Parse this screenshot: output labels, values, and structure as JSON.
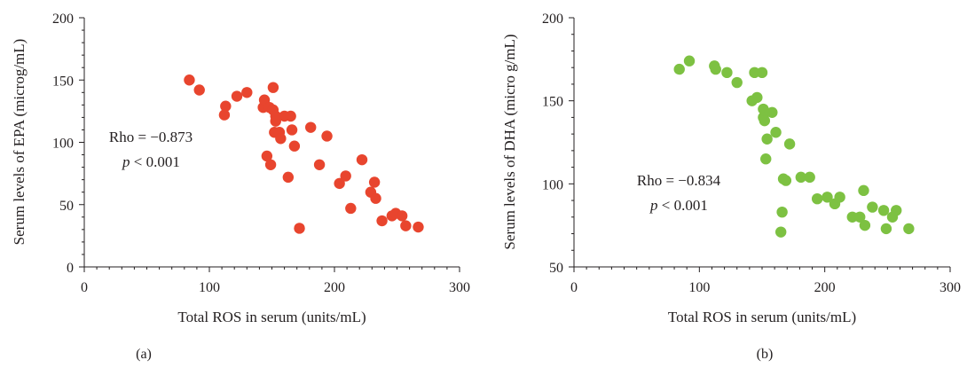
{
  "chart_data": [
    {
      "type": "scatter",
      "panel_label": "(a)",
      "xlabel": "Total ROS in serum (units/mL)",
      "ylabel": "Serum levels of EPA (microg/mL)",
      "xlim": [
        0,
        300
      ],
      "ylim": [
        0,
        200
      ],
      "xticks": [
        "0",
        "100",
        "200",
        "300"
      ],
      "yticks": [
        "0",
        "50",
        "100",
        "150",
        "200"
      ],
      "grid": false,
      "marker_color": "#e8452e",
      "annotation": {
        "rho": "Rho = −0.873",
        "p_italic": "p",
        "p_rest": " < 0.001"
      },
      "points": [
        [
          84,
          150
        ],
        [
          92,
          142
        ],
        [
          112,
          122
        ],
        [
          113,
          129
        ],
        [
          122,
          137
        ],
        [
          130,
          140
        ],
        [
          143,
          128
        ],
        [
          144,
          134
        ],
        [
          146,
          89
        ],
        [
          148,
          128
        ],
        [
          149,
          82
        ],
        [
          151,
          126
        ],
        [
          151,
          144
        ],
        [
          152,
          108
        ],
        [
          153,
          121
        ],
        [
          153,
          117
        ],
        [
          156,
          108
        ],
        [
          157,
          103
        ],
        [
          160,
          121
        ],
        [
          163,
          72
        ],
        [
          165,
          121
        ],
        [
          166,
          110
        ],
        [
          168,
          97
        ],
        [
          172,
          31
        ],
        [
          181,
          112
        ],
        [
          188,
          82
        ],
        [
          194,
          105
        ],
        [
          204,
          67
        ],
        [
          209,
          73
        ],
        [
          213,
          47
        ],
        [
          222,
          86
        ],
        [
          229,
          60
        ],
        [
          232,
          68
        ],
        [
          233,
          55
        ],
        [
          238,
          37
        ],
        [
          246,
          41
        ],
        [
          249,
          43
        ],
        [
          254,
          41
        ],
        [
          257,
          33
        ],
        [
          267,
          32
        ]
      ]
    },
    {
      "type": "scatter",
      "panel_label": "(b)",
      "xlabel": "Total ROS in serum (units/mL)",
      "ylabel": "Serum levels of DHA (micro g/mL)",
      "xlim": [
        0,
        300
      ],
      "ylim": [
        50,
        200
      ],
      "xticks": [
        "0",
        "100",
        "200",
        "300"
      ],
      "yticks": [
        "50",
        "100",
        "150",
        "200"
      ],
      "grid": false,
      "marker_color": "#7dc142",
      "annotation": {
        "rho": "Rho = −0.834",
        "p_italic": "p",
        "p_rest": " < 0.001"
      },
      "points": [
        [
          84,
          169
        ],
        [
          92,
          174
        ],
        [
          112,
          171
        ],
        [
          113,
          169
        ],
        [
          122,
          167
        ],
        [
          130,
          161
        ],
        [
          142,
          150
        ],
        [
          144,
          167
        ],
        [
          146,
          152
        ],
        [
          150,
          167
        ],
        [
          151,
          145
        ],
        [
          151,
          140
        ],
        [
          152,
          138
        ],
        [
          153,
          115
        ],
        [
          154,
          127
        ],
        [
          158,
          143
        ],
        [
          161,
          131
        ],
        [
          165,
          71
        ],
        [
          166,
          83
        ],
        [
          167,
          103
        ],
        [
          169,
          102
        ],
        [
          172,
          124
        ],
        [
          181,
          104
        ],
        [
          188,
          104
        ],
        [
          194,
          91
        ],
        [
          202,
          92
        ],
        [
          208,
          88
        ],
        [
          212,
          92
        ],
        [
          222,
          80
        ],
        [
          228,
          80
        ],
        [
          231,
          96
        ],
        [
          232,
          75
        ],
        [
          238,
          86
        ],
        [
          247,
          84
        ],
        [
          249,
          73
        ],
        [
          254,
          80
        ],
        [
          257,
          84
        ],
        [
          267,
          73
        ]
      ]
    }
  ]
}
